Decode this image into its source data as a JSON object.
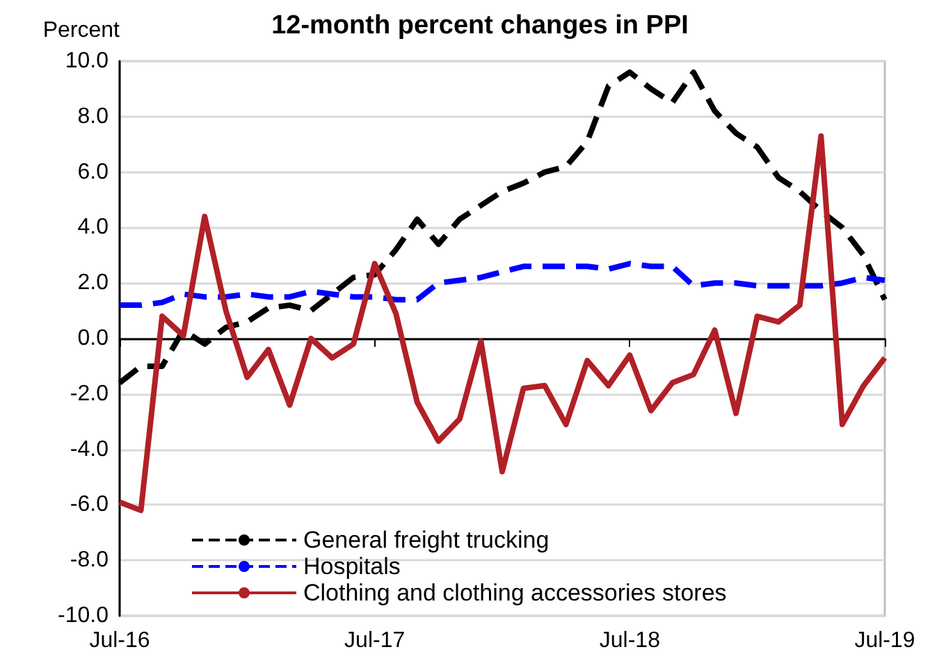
{
  "chart_data": {
    "type": "line",
    "title": "12-month percent changes in PPI",
    "ylabel": "Percent",
    "categories": [
      "Jul-16",
      null,
      null,
      null,
      null,
      null,
      null,
      null,
      null,
      null,
      null,
      null,
      "Jul-17",
      null,
      null,
      null,
      null,
      null,
      null,
      null,
      null,
      null,
      null,
      null,
      "Jul-18",
      null,
      null,
      null,
      null,
      null,
      null,
      null,
      null,
      null,
      null,
      null,
      "Jul-19"
    ],
    "series": [
      {
        "name": "General freight trucking",
        "color": "#000000",
        "line_style": "dashed",
        "values": [
          -1.6,
          -1.0,
          -1.0,
          0.3,
          -0.2,
          0.4,
          0.6,
          1.1,
          1.2,
          1.0,
          1.6,
          2.2,
          2.3,
          3.2,
          4.3,
          3.4,
          4.3,
          4.8,
          5.3,
          5.6,
          6.0,
          6.2,
          7.1,
          9.1,
          9.6,
          9.0,
          8.5,
          9.6,
          8.2,
          7.4,
          6.9,
          5.8,
          5.3,
          4.6,
          4.0,
          3.0,
          1.4
        ]
      },
      {
        "name": "Hospitals",
        "color": "#0000ff",
        "line_style": "dashed",
        "values": [
          1.2,
          1.2,
          1.3,
          1.6,
          1.5,
          1.5,
          1.6,
          1.5,
          1.5,
          1.7,
          1.6,
          1.5,
          1.5,
          1.4,
          1.4,
          2.0,
          2.1,
          2.2,
          2.4,
          2.6,
          2.6,
          2.6,
          2.6,
          2.5,
          2.7,
          2.6,
          2.6,
          1.9,
          2.0,
          2.0,
          1.9,
          1.9,
          1.9,
          1.9,
          2.0,
          2.2,
          2.1
        ]
      },
      {
        "name": "Clothing and clothing accessories stores",
        "color": "#b22027",
        "line_style": "solid",
        "values": [
          -5.9,
          -6.2,
          0.8,
          0.1,
          4.4,
          1.0,
          -1.4,
          -0.4,
          -2.4,
          0.0,
          -0.7,
          -0.2,
          2.7,
          0.9,
          -2.3,
          -3.7,
          -2.9,
          -0.1,
          -4.8,
          -1.8,
          -1.7,
          -3.1,
          -0.8,
          -1.7,
          -0.6,
          -2.6,
          -1.6,
          -1.3,
          0.3,
          -2.7,
          0.8,
          0.6,
          1.2,
          7.3,
          -3.1,
          -1.7,
          -0.7
        ]
      }
    ],
    "ylim": [
      -10,
      10
    ],
    "yticks": [
      {
        "value": -10,
        "label": "-10.0"
      },
      {
        "value": -8,
        "label": "-8.0"
      },
      {
        "value": -6,
        "label": "-6.0"
      },
      {
        "value": -4,
        "label": "-4.0"
      },
      {
        "value": -2,
        "label": "-2.0"
      },
      {
        "value": 0,
        "label": "0.0"
      },
      {
        "value": 2,
        "label": "2.0"
      },
      {
        "value": 4,
        "label": "4.0"
      },
      {
        "value": 6,
        "label": "6.0"
      },
      {
        "value": 8,
        "label": "8.0"
      },
      {
        "value": 10,
        "label": "10.0"
      }
    ],
    "grid": "y",
    "legend": "bottom",
    "marker": "none"
  }
}
